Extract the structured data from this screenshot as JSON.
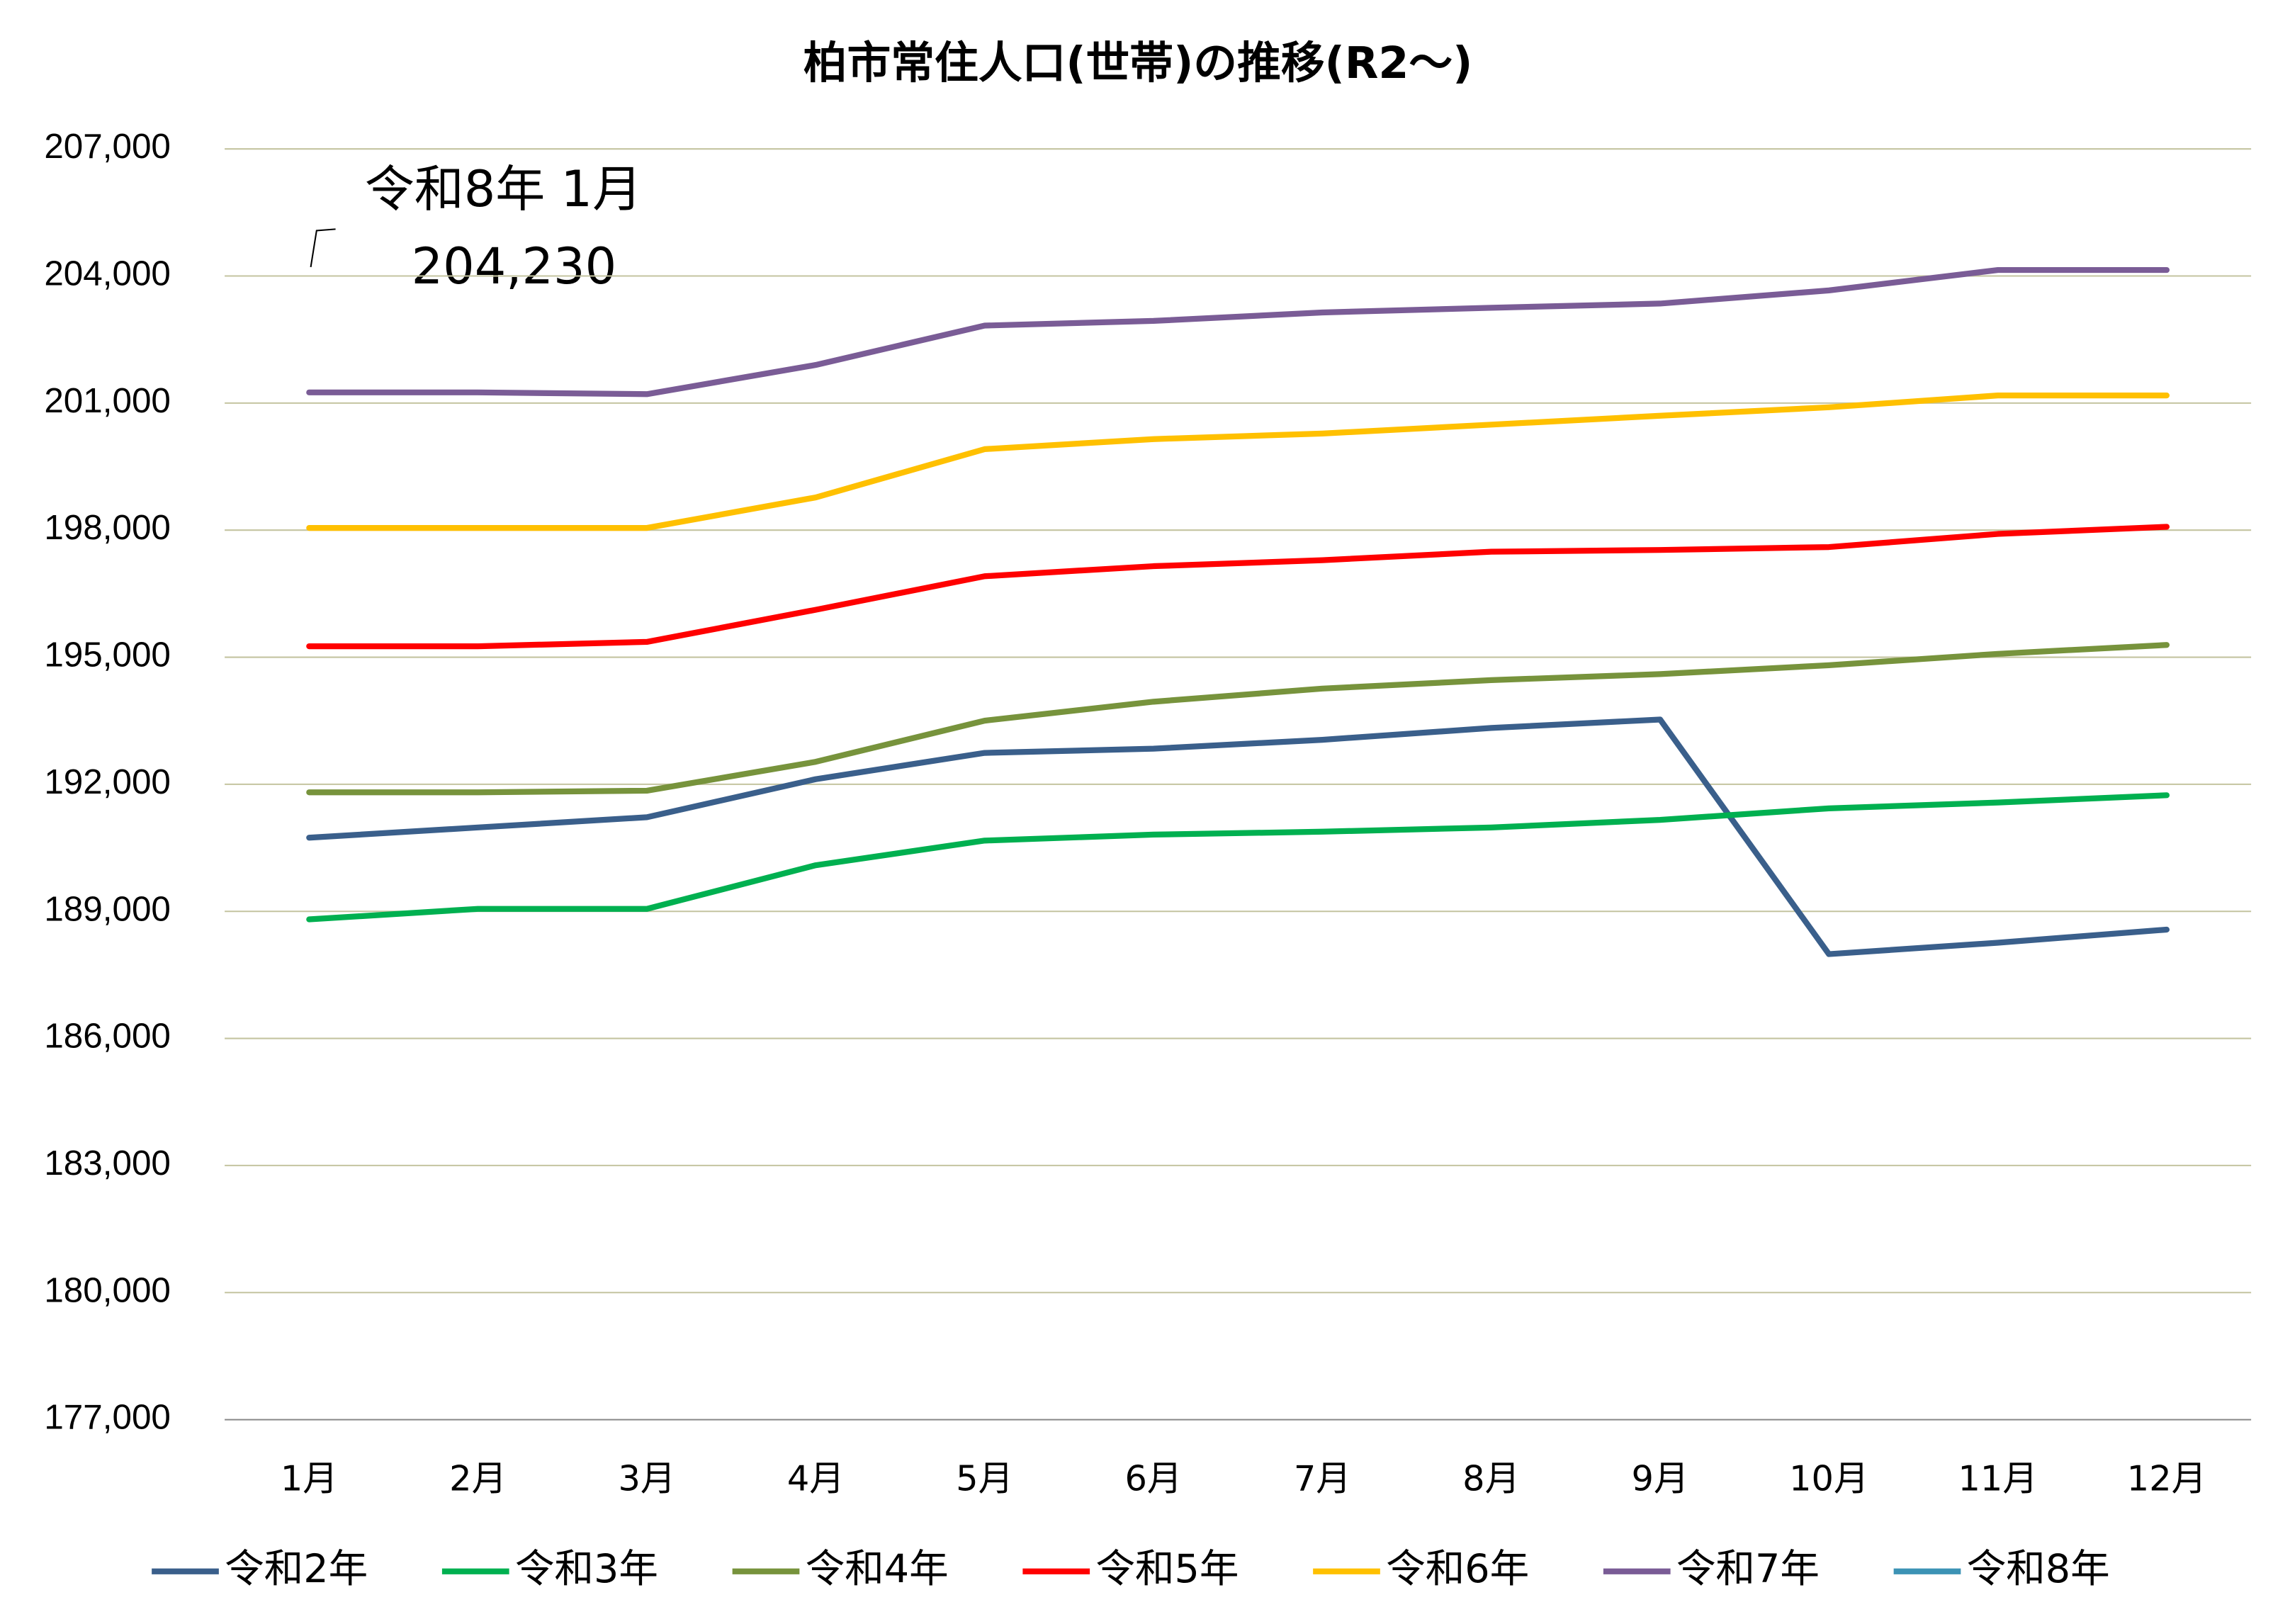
{
  "chart_data": {
    "type": "line",
    "title": "柏市常住人口(世帯)の推移(R2～)",
    "categories": [
      "1月",
      "2月",
      "3月",
      "4月",
      "5月",
      "6月",
      "7月",
      "8月",
      "9月",
      "10月",
      "11月",
      "12月"
    ],
    "series": [
      {
        "name": "令和2年",
        "color": "#3a5f8b",
        "values": [
          190740,
          190980,
          191220,
          192120,
          192740,
          192840,
          193050,
          193330,
          193530,
          187990,
          188260,
          188570
        ]
      },
      {
        "name": "令和3年",
        "color": "#00b050",
        "values": [
          188810,
          189060,
          189060,
          190090,
          190670,
          190810,
          190880,
          190980,
          191160,
          191430,
          191570,
          191740
        ]
      },
      {
        "name": "令和4年",
        "color": "#77933c",
        "values": [
          191810,
          191810,
          191850,
          192530,
          193500,
          193950,
          194260,
          194460,
          194600,
          194810,
          195080,
          195290
        ]
      },
      {
        "name": "令和5年",
        "color": "#ff0000",
        "values": [
          195260,
          195260,
          195360,
          196120,
          196910,
          197150,
          197290,
          197490,
          197530,
          197600,
          197910,
          198080
        ]
      },
      {
        "name": "令和6年",
        "color": "#ffc000",
        "values": [
          198050,
          198050,
          198050,
          198770,
          199910,
          200150,
          200280,
          200490,
          200700,
          200900,
          201180,
          201180
        ]
      },
      {
        "name": "令和7年",
        "color": "#7a5c96",
        "values": [
          201250,
          201250,
          201210,
          201900,
          202830,
          202940,
          203140,
          203250,
          203350,
          203660,
          204140,
          204140
        ]
      },
      {
        "name": "令和8年",
        "color": "#3c93b5",
        "values": [
          204230,
          null,
          null,
          null,
          null,
          null,
          null,
          null,
          null,
          null,
          null,
          null
        ]
      }
    ],
    "annotations": [
      "令和8年 1月",
      "204,230"
    ],
    "ylim": [
      177000,
      207000
    ],
    "yticks": [
      {
        "value": 177000,
        "label": "177,000"
      },
      {
        "value": 180000,
        "label": "180,000"
      },
      {
        "value": 183000,
        "label": "183,000"
      },
      {
        "value": 186000,
        "label": "186,000"
      },
      {
        "value": 189000,
        "label": "189,000"
      },
      {
        "value": 192000,
        "label": "192,000"
      },
      {
        "value": 195000,
        "label": "195,000"
      },
      {
        "value": 198000,
        "label": "198,000"
      },
      {
        "value": 201000,
        "label": "201,000"
      },
      {
        "value": 204000,
        "label": "204,000"
      },
      {
        "value": 207000,
        "label": "207,000"
      }
    ],
    "grid": true,
    "legend": "bottom"
  }
}
